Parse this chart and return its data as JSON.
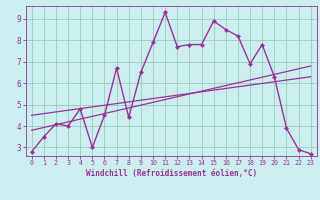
{
  "xlabel": "Windchill (Refroidissement éolien,°C)",
  "background_color": "#cceeee",
  "grid_color": "#99ccbb",
  "line_color": "#993399",
  "xlim": [
    -0.5,
    23.5
  ],
  "ylim": [
    2.6,
    9.6
  ],
  "xticks": [
    0,
    1,
    2,
    3,
    4,
    5,
    6,
    7,
    8,
    9,
    10,
    11,
    12,
    13,
    14,
    15,
    16,
    17,
    18,
    19,
    20,
    21,
    22,
    23
  ],
  "yticks": [
    3,
    4,
    5,
    6,
    7,
    8,
    9
  ],
  "curve1_x": [
    0,
    1,
    2,
    3,
    4,
    5,
    6,
    7,
    8,
    9,
    10,
    11,
    12,
    13,
    14,
    15,
    16,
    17,
    18,
    19,
    20,
    21,
    22,
    23
  ],
  "curve1_y": [
    2.8,
    3.5,
    4.1,
    4.0,
    4.8,
    3.0,
    4.5,
    6.7,
    4.4,
    6.5,
    7.9,
    9.3,
    7.7,
    7.8,
    7.8,
    8.9,
    8.5,
    8.2,
    6.9,
    7.8,
    6.3,
    3.9,
    2.9,
    2.7
  ],
  "line1_x": [
    0,
    23
  ],
  "line1_y": [
    3.8,
    6.8
  ],
  "line2_x": [
    0,
    23
  ],
  "line2_y": [
    4.5,
    6.3
  ]
}
